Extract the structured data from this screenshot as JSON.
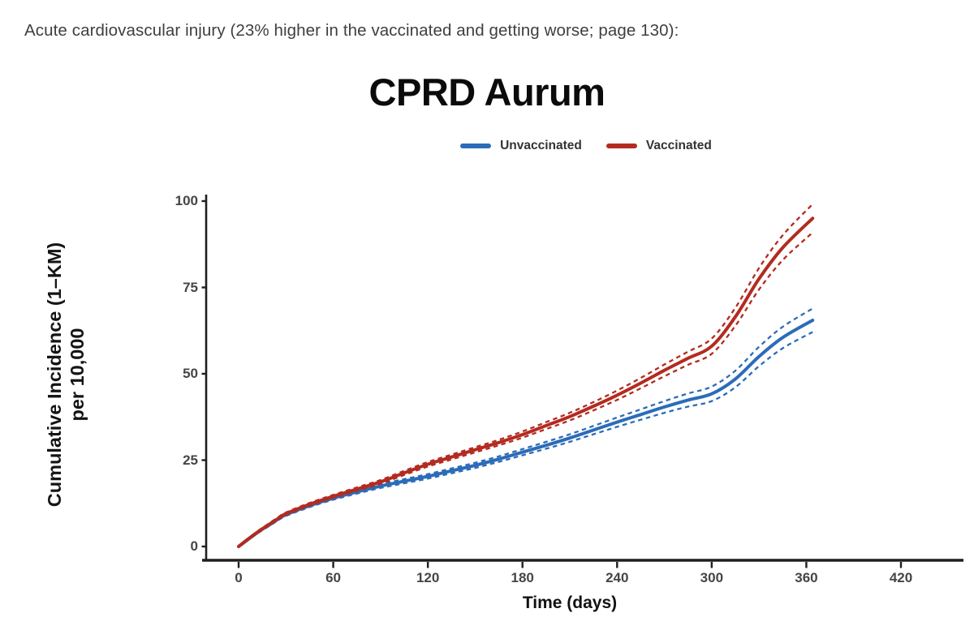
{
  "caption": {
    "text": "Acute cardiovascular injury (23% higher in the vaccinated and getting worse; page 130):"
  },
  "chart_data": {
    "type": "line",
    "title": "CPRD Aurum",
    "xlabel": "Time (days)",
    "ylabel_line1": "Cumulative Incidence (1–KM)",
    "ylabel_line2": "per 10,000",
    "x_ticks": [
      0,
      60,
      120,
      180,
      240,
      300,
      360,
      420
    ],
    "y_ticks": [
      0,
      25,
      50,
      75,
      100
    ],
    "xlim": [
      0,
      420
    ],
    "ylim": [
      0,
      100
    ],
    "grid": false,
    "legend_position": "top-center",
    "axis_color": "#1f1f1f",
    "tick_label_color": "#454545",
    "ci_style": "dashed",
    "series": [
      {
        "name": "Unvaccinated",
        "color": "#2b6cb8",
        "points_day_value_ci": [
          [
            0,
            0,
            0.2
          ],
          [
            5,
            1.7,
            0.2
          ],
          [
            10,
            3.4,
            0.25
          ],
          [
            15,
            5.0,
            0.3
          ],
          [
            20,
            6.4,
            0.3
          ],
          [
            25,
            7.9,
            0.35
          ],
          [
            30,
            9.2,
            0.35
          ],
          [
            45,
            11.8,
            0.4
          ],
          [
            60,
            14.0,
            0.45
          ],
          [
            75,
            15.8,
            0.5
          ],
          [
            90,
            17.5,
            0.55
          ],
          [
            105,
            18.9,
            0.6
          ],
          [
            120,
            20.3,
            0.65
          ],
          [
            135,
            21.9,
            0.7
          ],
          [
            150,
            23.5,
            0.75
          ],
          [
            165,
            25.3,
            0.8
          ],
          [
            180,
            27.3,
            0.9
          ],
          [
            195,
            29.3,
            1.0
          ],
          [
            210,
            31.4,
            1.1
          ],
          [
            225,
            33.7,
            1.2
          ],
          [
            240,
            36.0,
            1.35
          ],
          [
            255,
            38.2,
            1.5
          ],
          [
            270,
            40.4,
            1.7
          ],
          [
            285,
            42.4,
            1.9
          ],
          [
            300,
            44.2,
            2.1
          ],
          [
            315,
            48.5,
            2.4
          ],
          [
            330,
            55.0,
            2.8
          ],
          [
            345,
            60.5,
            3.1
          ],
          [
            364,
            65.5,
            3.4
          ]
        ]
      },
      {
        "name": "Vaccinated",
        "color": "#b32b20",
        "points_day_value_ci": [
          [
            0,
            0,
            0.2
          ],
          [
            5,
            1.8,
            0.2
          ],
          [
            10,
            3.5,
            0.25
          ],
          [
            15,
            5.1,
            0.3
          ],
          [
            20,
            6.6,
            0.3
          ],
          [
            25,
            8.1,
            0.35
          ],
          [
            30,
            9.5,
            0.35
          ],
          [
            45,
            12.2,
            0.4
          ],
          [
            60,
            14.5,
            0.45
          ],
          [
            75,
            16.6,
            0.5
          ],
          [
            90,
            18.7,
            0.55
          ],
          [
            105,
            21.3,
            0.6
          ],
          [
            120,
            23.8,
            0.65
          ],
          [
            135,
            25.9,
            0.7
          ],
          [
            150,
            28.0,
            0.75
          ],
          [
            165,
            30.1,
            0.8
          ],
          [
            180,
            32.4,
            0.9
          ],
          [
            195,
            35.0,
            1.0
          ],
          [
            210,
            37.6,
            1.1
          ],
          [
            225,
            40.6,
            1.2
          ],
          [
            240,
            43.8,
            1.35
          ],
          [
            255,
            47.3,
            1.5
          ],
          [
            270,
            51.0,
            1.7
          ],
          [
            285,
            54.5,
            1.9
          ],
          [
            300,
            58.0,
            2.2
          ],
          [
            315,
            66.5,
            2.6
          ],
          [
            330,
            77.5,
            3.1
          ],
          [
            345,
            86.5,
            3.6
          ],
          [
            364,
            95.0,
            4.1
          ]
        ]
      }
    ]
  }
}
